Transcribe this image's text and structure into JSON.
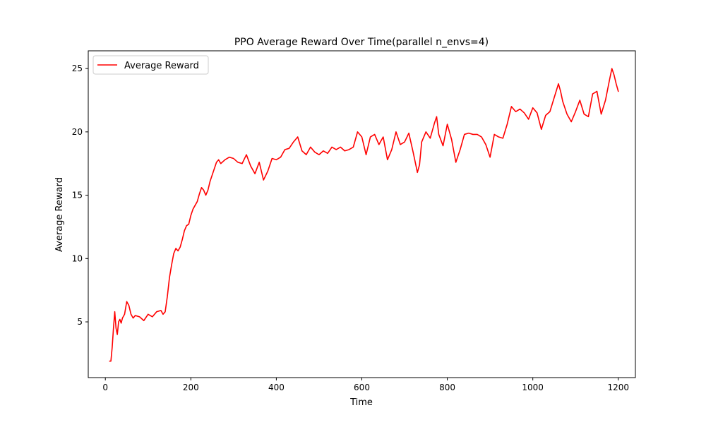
{
  "chart_data": {
    "type": "line",
    "title": "PPO Average Reward Over Time(parallel n_envs=4)",
    "xlabel": "Time",
    "ylabel": "Average Reward",
    "xlim": [
      -40,
      1240
    ],
    "ylim": [
      0.6,
      26.4
    ],
    "xticks": [
      0,
      200,
      400,
      600,
      800,
      1000,
      1200
    ],
    "yticks": [
      5,
      10,
      15,
      20,
      25
    ],
    "grid": false,
    "legend": {
      "location": "upper-left",
      "entries": [
        "Average Reward"
      ]
    },
    "colors": {
      "series": "#ff0000",
      "axes": "#000000",
      "background": "#ffffff"
    },
    "series": [
      {
        "name": "Average Reward",
        "x": [
          10,
          13,
          16,
          19,
          22,
          25,
          28,
          31,
          34,
          37,
          40,
          45,
          50,
          55,
          60,
          65,
          70,
          80,
          90,
          100,
          110,
          120,
          130,
          135,
          140,
          145,
          150,
          155,
          160,
          165,
          170,
          175,
          180,
          185,
          190,
          195,
          200,
          205,
          210,
          215,
          220,
          225,
          230,
          235,
          240,
          245,
          250,
          255,
          260,
          265,
          270,
          280,
          290,
          300,
          310,
          320,
          330,
          340,
          350,
          360,
          370,
          380,
          390,
          400,
          410,
          420,
          430,
          440,
          450,
          460,
          470,
          480,
          490,
          500,
          510,
          520,
          530,
          540,
          550,
          560,
          570,
          580,
          590,
          600,
          610,
          620,
          630,
          640,
          650,
          660,
          670,
          680,
          690,
          700,
          710,
          720,
          730,
          735,
          740,
          750,
          760,
          770,
          775,
          780,
          790,
          800,
          810,
          820,
          830,
          840,
          850,
          860,
          870,
          880,
          890,
          900,
          910,
          920,
          930,
          940,
          950,
          960,
          970,
          980,
          990,
          1000,
          1010,
          1020,
          1030,
          1040,
          1050,
          1060,
          1065,
          1070,
          1080,
          1090,
          1100,
          1110,
          1120,
          1130,
          1140,
          1150,
          1160,
          1170,
          1180,
          1185,
          1190,
          1195,
          1200
        ],
        "y": [
          1.9,
          1.9,
          3.0,
          4.5,
          5.8,
          4.5,
          4.0,
          5.0,
          5.2,
          4.9,
          5.3,
          5.6,
          6.6,
          6.3,
          5.6,
          5.3,
          5.5,
          5.4,
          5.1,
          5.6,
          5.4,
          5.8,
          5.9,
          5.6,
          5.8,
          7.0,
          8.5,
          9.5,
          10.4,
          10.8,
          10.6,
          10.9,
          11.5,
          12.2,
          12.6,
          12.7,
          13.4,
          13.9,
          14.2,
          14.5,
          15.1,
          15.6,
          15.4,
          15.0,
          15.4,
          16.1,
          16.6,
          17.1,
          17.6,
          17.8,
          17.5,
          17.8,
          18.0,
          17.9,
          17.6,
          17.5,
          18.2,
          17.3,
          16.7,
          17.6,
          16.2,
          16.9,
          17.9,
          17.8,
          18.0,
          18.6,
          18.7,
          19.2,
          19.6,
          18.5,
          18.2,
          18.8,
          18.4,
          18.2,
          18.5,
          18.3,
          18.8,
          18.6,
          18.8,
          18.5,
          18.6,
          18.8,
          20.0,
          19.6,
          18.2,
          19.6,
          19.8,
          19.0,
          19.6,
          17.8,
          18.6,
          20.0,
          19.0,
          19.2,
          19.9,
          18.4,
          16.8,
          17.4,
          19.2,
          20.0,
          19.5,
          20.7,
          21.2,
          19.8,
          18.9,
          20.6,
          19.4,
          17.6,
          18.6,
          19.8,
          19.9,
          19.8,
          19.8,
          19.6,
          19.0,
          18.0,
          19.8,
          19.6,
          19.5,
          20.6,
          22.0,
          21.6,
          21.8,
          21.5,
          21.0,
          21.9,
          21.5,
          20.2,
          21.3,
          21.6,
          22.7,
          23.8,
          23.2,
          22.4,
          21.4,
          20.8,
          21.6,
          22.5,
          21.4,
          21.2,
          23.0,
          23.2,
          21.4,
          22.5,
          24.2,
          25.0,
          24.5,
          23.8,
          23.2
        ]
      }
    ]
  }
}
